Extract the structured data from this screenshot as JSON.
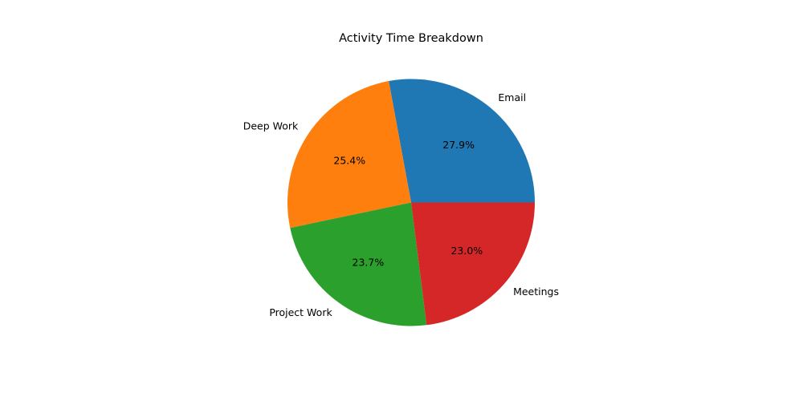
{
  "chart_data": {
    "type": "pie",
    "title": "Activity Time Breakdown",
    "categories": [
      "Email",
      "Deep Work",
      "Project Work",
      "Meetings"
    ],
    "values": [
      27.9,
      25.4,
      23.7,
      23.0
    ],
    "percent_labels": [
      "27.9%",
      "25.4%",
      "23.7%",
      "23.0%"
    ],
    "colors": [
      "#1f77b4",
      "#ff7f0e",
      "#2ca02c",
      "#d62728"
    ],
    "start_angle_deg": 0,
    "direction": "counterclockwise",
    "legend": "none"
  }
}
